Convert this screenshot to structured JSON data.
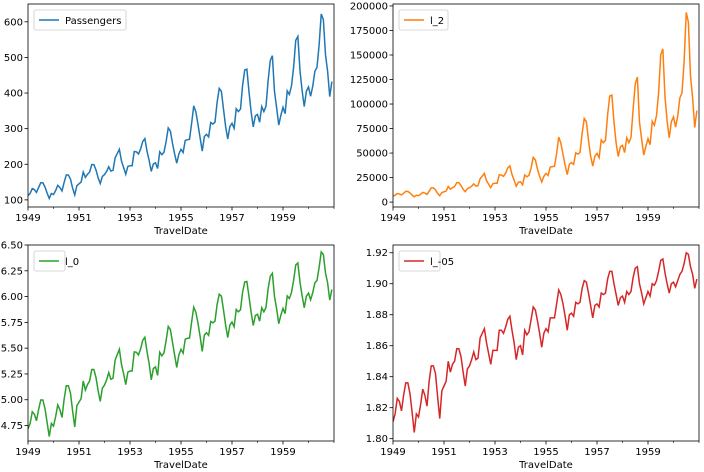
{
  "chart_data": [
    {
      "type": "line",
      "xlabel": "TravelDate",
      "ylabel": "",
      "xlim": [
        1949.0,
        1961.0
      ],
      "ylim": [
        80,
        650
      ],
      "xticks": [
        1949,
        1951,
        1953,
        1955,
        1957,
        1959
      ],
      "yticks": [
        100,
        200,
        300,
        400,
        500,
        600
      ],
      "ytick_labels": [
        "100",
        "200",
        "300",
        "400",
        "500",
        "600"
      ],
      "legend": "top-left",
      "grid": false,
      "series": [
        {
          "name": "Passengers",
          "color": "#1f77b4",
          "x_start": 1949.0,
          "x_step": 0.08333,
          "values": [
            112,
            118,
            132,
            129,
            121,
            135,
            148,
            148,
            136,
            119,
            104,
            118,
            115,
            126,
            141,
            135,
            125,
            149,
            170,
            170,
            158,
            133,
            114,
            140,
            145,
            150,
            178,
            163,
            172,
            178,
            199,
            199,
            184,
            162,
            146,
            166,
            171,
            180,
            193,
            181,
            183,
            218,
            230,
            242,
            209,
            191,
            172,
            194,
            196,
            196,
            236,
            235,
            229,
            243,
            264,
            272,
            237,
            211,
            180,
            201,
            204,
            188,
            235,
            227,
            234,
            264,
            302,
            293,
            259,
            229,
            203,
            229,
            242,
            233,
            267,
            269,
            270,
            315,
            364,
            347,
            312,
            274,
            237,
            278,
            284,
            277,
            317,
            313,
            318,
            374,
            413,
            405,
            355,
            306,
            271,
            306,
            315,
            301,
            356,
            348,
            355,
            422,
            465,
            467,
            404,
            347,
            305,
            336,
            340,
            318,
            362,
            348,
            363,
            435,
            491,
            505,
            404,
            359,
            310,
            337,
            360,
            342,
            406,
            396,
            420,
            472,
            548,
            559,
            463,
            407,
            362,
            405,
            417,
            391,
            419,
            461,
            472,
            535,
            622,
            606,
            508,
            461,
            390,
            432
          ]
        }
      ]
    },
    {
      "type": "line",
      "xlabel": "TravelDate",
      "ylabel": "",
      "xlim": [
        1949.0,
        1961.0
      ],
      "ylim": [
        -5000,
        202000
      ],
      "xticks": [
        1949,
        1951,
        1953,
        1955,
        1957,
        1959
      ],
      "yticks": [
        0,
        25000,
        50000,
        75000,
        100000,
        125000,
        150000,
        175000,
        200000
      ],
      "ytick_labels": [
        "0",
        "25000",
        "50000",
        "75000",
        "100000",
        "125000",
        "150000",
        "175000",
        "200000"
      ],
      "legend": "top-left",
      "grid": false,
      "series": [
        {
          "name": "l_2",
          "color": "#ff7f0e",
          "x_start": 1949.0,
          "x_step": 0.08333,
          "values": [
            6272,
            6962,
            8712,
            8320,
            7320,
            9112,
            10952,
            10952,
            9248,
            7080,
            5408,
            6962,
            6612,
            7938,
            9940,
            9112,
            7812,
            11100,
            14450,
            14450,
            12482,
            8844,
            6498,
            9800,
            10512,
            11250,
            15842,
            13284,
            14792,
            15842,
            19800,
            19800,
            16928,
            13122,
            10658,
            13778,
            14620,
            16200,
            18624,
            16380,
            16744,
            23762,
            26450,
            29282,
            21840,
            18240,
            14792,
            18818,
            19208,
            19208,
            27848,
            27612,
            26220,
            29574,
            34848,
            36992,
            28084,
            22260,
            16200,
            20200,
            20808,
            17672,
            27612,
            25764,
            27378,
            34848,
            45602,
            42924,
            33540,
            26220,
            20604,
            26220,
            29282,
            27144,
            35644,
            36180,
            36450,
            49612,
            66248,
            60204,
            48672,
            37538,
            28084,
            38642,
            40328,
            38364,
            50244,
            48984,
            50562,
            69938,
            85284,
            82012,
            63012,
            46818,
            36720,
            46818,
            49612,
            45300,
            63368,
            60552,
            63012,
            89042,
            108112,
            109044,
            81608,
            60204,
            46512,
            56448,
            57800,
            50562,
            65522,
            60552,
            65884,
            94612,
            120540,
            127512,
            81608,
            64440,
            48050,
            56784,
            64800,
            58482,
            82418,
            78408,
            88200,
            111392,
            150152,
            156240,
            107184,
            82824,
            65522,
            82012,
            86944,
            76440,
            87780,
            106260,
            111392,
            143112,
            193442,
            183618,
            129032,
            106260,
            76050,
            93312
          ]
        }
      ]
    },
    {
      "type": "line",
      "xlabel": "TravelDate",
      "ylabel": "",
      "xlim": [
        1949.0,
        1961.0
      ],
      "ylim": [
        4.6,
        6.5
      ],
      "xticks": [
        1949,
        1951,
        1953,
        1955,
        1957,
        1959
      ],
      "yticks": [
        4.75,
        5.0,
        5.25,
        5.5,
        5.75,
        6.0,
        6.25,
        6.5
      ],
      "ytick_labels": [
        "4.75",
        "5.00",
        "5.25",
        "5.50",
        "5.75",
        "6.00",
        "6.25",
        "6.50"
      ],
      "legend": "top-left",
      "grid": false,
      "series": [
        {
          "name": "l_0",
          "color": "#2ca02c",
          "x_start": 1949.0,
          "x_step": 0.08333,
          "values": [
            4.718,
            4.771,
            4.883,
            4.86,
            4.796,
            4.905,
            4.997,
            4.997,
            4.913,
            4.779,
            4.644,
            4.771,
            4.745,
            4.836,
            4.949,
            4.905,
            4.828,
            5.004,
            5.136,
            5.136,
            5.063,
            4.89,
            4.736,
            4.942,
            4.977,
            5.011,
            5.182,
            5.094,
            5.147,
            5.182,
            5.293,
            5.293,
            5.215,
            5.088,
            4.984,
            5.112,
            5.142,
            5.193,
            5.263,
            5.198,
            5.209,
            5.384,
            5.438,
            5.489,
            5.342,
            5.252,
            5.147,
            5.268,
            5.278,
            5.278,
            5.464,
            5.46,
            5.434,
            5.493,
            5.576,
            5.606,
            5.468,
            5.352,
            5.193,
            5.303,
            5.318,
            5.236,
            5.46,
            5.425,
            5.455,
            5.576,
            5.71,
            5.68,
            5.557,
            5.434,
            5.313,
            5.434,
            5.489,
            5.451,
            5.587,
            5.595,
            5.598,
            5.753,
            5.897,
            5.849,
            5.743,
            5.613,
            5.468,
            5.628,
            5.649,
            5.624,
            5.759,
            5.746,
            5.762,
            5.924,
            6.023,
            6.004,
            5.872,
            5.724,
            5.602,
            5.724,
            5.753,
            5.707,
            5.875,
            5.852,
            5.872,
            6.045,
            6.142,
            6.146,
            6.001,
            5.849,
            5.72,
            5.817,
            5.829,
            5.762,
            5.892,
            5.852,
            5.894,
            6.075,
            6.196,
            6.225,
            6.001,
            5.883,
            5.737,
            5.82,
            5.886,
            5.835,
            6.006,
            5.981,
            6.04,
            6.157,
            6.306,
            6.326,
            6.138,
            6.009,
            5.892,
            6.004,
            6.033,
            5.969,
            6.038,
            6.133,
            6.157,
            6.283,
            6.433,
            6.407,
            6.23,
            6.133,
            5.966,
            6.068
          ]
        }
      ]
    },
    {
      "type": "line",
      "xlabel": "TravelDate",
      "ylabel": "",
      "xlim": [
        1949.0,
        1961.0
      ],
      "ylim": [
        1.7985,
        1.925
      ],
      "xticks": [
        1949,
        1951,
        1953,
        1955,
        1957,
        1959
      ],
      "yticks": [
        1.8,
        1.82,
        1.84,
        1.86,
        1.88,
        1.9,
        1.92
      ],
      "ytick_labels": [
        "1.80",
        "1.82",
        "1.84",
        "1.86",
        "1.88",
        "1.90",
        "1.92"
      ],
      "legend": "top-left",
      "grid": false,
      "series": [
        {
          "name": "l_-05",
          "color": "#d62728",
          "x_start": 1949.0,
          "x_step": 0.08333,
          "values": [
            1.811,
            1.816,
            1.826,
            1.824,
            1.818,
            1.828,
            1.836,
            1.836,
            1.829,
            1.817,
            1.804,
            1.816,
            1.814,
            1.822,
            1.832,
            1.828,
            1.821,
            1.837,
            1.847,
            1.847,
            1.842,
            1.827,
            1.813,
            1.831,
            1.834,
            1.837,
            1.85,
            1.843,
            1.848,
            1.85,
            1.858,
            1.858,
            1.853,
            1.843,
            1.834,
            1.845,
            1.847,
            1.851,
            1.856,
            1.851,
            1.852,
            1.865,
            1.868,
            1.871,
            1.862,
            1.855,
            1.848,
            1.857,
            1.857,
            1.857,
            1.87,
            1.87,
            1.868,
            1.872,
            1.877,
            1.879,
            1.87,
            1.862,
            1.851,
            1.859,
            1.86,
            1.854,
            1.87,
            1.867,
            1.869,
            1.877,
            1.885,
            1.883,
            1.876,
            1.868,
            1.859,
            1.868,
            1.871,
            1.869,
            1.878,
            1.878,
            1.878,
            1.887,
            1.896,
            1.893,
            1.887,
            1.879,
            1.87,
            1.88,
            1.881,
            1.879,
            1.888,
            1.887,
            1.888,
            1.897,
            1.902,
            1.901,
            1.894,
            1.886,
            1.878,
            1.886,
            1.887,
            1.885,
            1.894,
            1.893,
            1.894,
            1.903,
            1.908,
            1.908,
            1.9,
            1.893,
            1.886,
            1.891,
            1.892,
            1.888,
            1.895,
            1.893,
            1.895,
            1.904,
            1.91,
            1.911,
            1.9,
            1.894,
            1.887,
            1.891,
            1.895,
            1.892,
            1.9,
            1.899,
            1.902,
            1.908,
            1.915,
            1.916,
            1.907,
            1.9,
            1.894,
            1.9,
            1.901,
            1.898,
            1.902,
            1.906,
            1.908,
            1.913,
            1.92,
            1.919,
            1.911,
            1.906,
            1.897,
            1.903
          ]
        }
      ]
    }
  ]
}
